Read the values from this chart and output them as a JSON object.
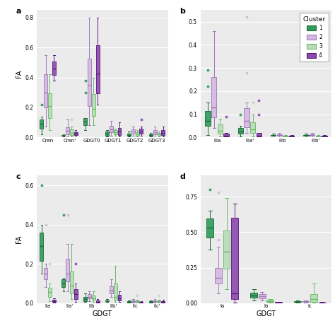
{
  "cluster_colors": {
    "1": "#2d9b5a",
    "2": "#d4b8e0",
    "3": "#b8ddb8",
    "4": "#8b4aad"
  },
  "cluster_edge_colors": {
    "1": "#1a6b35",
    "2": "#a07ab8",
    "3": "#6ab86a",
    "4": "#5a1880"
  },
  "cluster_median_colors": {
    "1": "#1a6b35",
    "2": "#a07ab8",
    "3": "#6ab86a",
    "4": "#5a1880"
  },
  "panel_a": {
    "title": "a",
    "ylabel": "FA",
    "ylim": [
      0,
      0.85
    ],
    "yticks": [
      0.0,
      0.2,
      0.4,
      0.6,
      0.8
    ],
    "categories": [
      "Cren",
      "Cren'",
      "GDGT0",
      "GDGT1",
      "GDGT2",
      "GDGT3"
    ],
    "xlabel": "",
    "clusters": {
      "1": {
        "Cren": [
          0.02,
          0.04,
          0.05,
          0.06,
          0.07,
          0.08,
          0.09,
          0.1,
          0.11,
          0.12,
          0.13,
          0.14,
          0.22
        ],
        "Cren'": [
          0.005,
          0.008,
          0.01,
          0.012,
          0.015,
          0.018,
          0.02
        ],
        "GDGT0": [
          0.05,
          0.07,
          0.08,
          0.09,
          0.1,
          0.11,
          0.12,
          0.13,
          0.38,
          0.3
        ],
        "GDGT1": [
          0.005,
          0.01,
          0.02,
          0.03,
          0.04,
          0.05
        ],
        "GDGT2": [
          0.005,
          0.01,
          0.015,
          0.02,
          0.03,
          0.04
        ],
        "GDGT3": [
          0.005,
          0.01,
          0.015,
          0.02,
          0.03
        ]
      },
      "2": {
        "Cren": [
          0.07,
          0.1,
          0.15,
          0.18,
          0.2,
          0.22,
          0.25,
          0.28,
          0.3,
          0.35,
          0.38,
          0.4,
          0.42,
          0.45,
          0.47,
          0.5,
          0.55
        ],
        "Cren'": [
          0.005,
          0.01,
          0.02,
          0.03,
          0.04,
          0.05,
          0.06,
          0.07,
          0.08,
          0.12
        ],
        "GDGT0": [
          0.08,
          0.12,
          0.15,
          0.18,
          0.2,
          0.22,
          0.25,
          0.27,
          0.3,
          0.35,
          0.38,
          0.4,
          0.45,
          0.5,
          0.55,
          0.6,
          0.62,
          0.65,
          0.8
        ],
        "GDGT1": [
          0.01,
          0.02,
          0.03,
          0.04,
          0.05,
          0.06,
          0.07,
          0.08,
          0.1,
          0.11
        ],
        "GDGT2": [
          0.01,
          0.02,
          0.03,
          0.04,
          0.05,
          0.06,
          0.07
        ],
        "GDGT3": [
          0.01,
          0.02,
          0.03,
          0.04,
          0.05,
          0.07
        ]
      },
      "3": {
        "Cren": [
          0.05,
          0.08,
          0.1,
          0.12,
          0.15,
          0.18,
          0.2,
          0.22,
          0.25,
          0.28,
          0.3,
          0.35,
          0.38,
          0.42
        ],
        "Cren'": [
          0.005,
          0.01,
          0.015,
          0.02,
          0.025,
          0.03,
          0.04,
          0.05,
          0.06,
          0.07,
          0.12
        ],
        "GDGT0": [
          0.08,
          0.1,
          0.12,
          0.14,
          0.15,
          0.16,
          0.18,
          0.2,
          0.22,
          0.25,
          0.3,
          0.35,
          0.38,
          0.4
        ],
        "GDGT1": [
          0.01,
          0.02,
          0.03,
          0.04,
          0.05,
          0.06
        ],
        "GDGT2": [
          0.005,
          0.01,
          0.015,
          0.02,
          0.03,
          0.04,
          0.05
        ],
        "GDGT3": [
          0.005,
          0.01,
          0.02,
          0.03,
          0.04
        ]
      },
      "4": {
        "Cren": [
          0.38,
          0.4,
          0.42,
          0.45,
          0.47,
          0.5,
          0.52,
          0.55
        ],
        "Cren'": [
          0.01,
          0.015,
          0.02,
          0.025,
          0.03,
          0.04,
          0.05
        ],
        "GDGT0": [
          0.22,
          0.25,
          0.27,
          0.3,
          0.32,
          0.35,
          0.5,
          0.55,
          0.6,
          0.65,
          0.75,
          0.8
        ],
        "GDGT1": [
          0.005,
          0.01,
          0.02,
          0.03,
          0.05,
          0.06,
          0.07,
          0.1
        ],
        "GDGT2": [
          0.01,
          0.02,
          0.03,
          0.04,
          0.05,
          0.07,
          0.12
        ],
        "GDGT3": [
          0.005,
          0.01,
          0.02,
          0.03,
          0.04,
          0.06,
          0.07
        ]
      }
    }
  },
  "panel_b": {
    "title": "b",
    "ylabel": "",
    "ylim": [
      0,
      0.55
    ],
    "yticks": [
      0.0,
      0.1,
      0.2,
      0.3,
      0.4,
      0.5
    ],
    "categories": [
      "IIIa",
      "IIIa'",
      "IIIb",
      "IIIb'"
    ],
    "xlabel": "",
    "clusters": {
      "1": {
        "IIIa": [
          0.01,
          0.02,
          0.03,
          0.04,
          0.05,
          0.055,
          0.06,
          0.065,
          0.07,
          0.075,
          0.08,
          0.09,
          0.1,
          0.12,
          0.14,
          0.15,
          0.22,
          0.29
        ],
        "IIIa'": [
          0.005,
          0.01,
          0.015,
          0.02,
          0.025,
          0.03,
          0.04,
          0.05,
          0.1
        ],
        "IIIb": [
          0.002,
          0.005,
          0.008,
          0.01,
          0.012,
          0.015
        ],
        "IIIb'": [
          0.002,
          0.005,
          0.008,
          0.01,
          0.012,
          0.015
        ]
      },
      "2": {
        "IIIa": [
          0.04,
          0.06,
          0.07,
          0.08,
          0.09,
          0.1,
          0.11,
          0.13,
          0.14,
          0.15,
          0.22,
          0.3,
          0.35,
          0.38,
          0.46
        ],
        "IIIa'": [
          0.02,
          0.03,
          0.04,
          0.05,
          0.06,
          0.07,
          0.08,
          0.1,
          0.15,
          0.28,
          0.52
        ],
        "IIIb": [
          0.002,
          0.005,
          0.008,
          0.01,
          0.015,
          0.02
        ],
        "IIIb'": [
          0.002,
          0.005,
          0.008,
          0.01,
          0.015,
          0.02
        ]
      },
      "3": {
        "IIIa": [
          0.005,
          0.01,
          0.015,
          0.02,
          0.025,
          0.03,
          0.04,
          0.05,
          0.06,
          0.07,
          0.08
        ],
        "IIIa'": [
          0.005,
          0.01,
          0.015,
          0.02,
          0.025,
          0.03,
          0.04,
          0.05,
          0.06,
          0.08,
          0.1,
          0.15
        ],
        "IIIb": [
          0.001,
          0.002,
          0.003,
          0.005,
          0.007,
          0.01
        ],
        "IIIb'": [
          0.001,
          0.002,
          0.003,
          0.005,
          0.007,
          0.01
        ]
      },
      "4": {
        "IIIa": [
          0.001,
          0.002,
          0.003,
          0.005,
          0.007,
          0.01,
          0.015,
          0.02,
          0.09
        ],
        "IIIa'": [
          0.001,
          0.002,
          0.003,
          0.005,
          0.007,
          0.01,
          0.015,
          0.02,
          0.1,
          0.16
        ],
        "IIIb": [
          0.001,
          0.002,
          0.003,
          0.005,
          0.007,
          0.01
        ],
        "IIIb'": [
          0.001,
          0.002,
          0.003,
          0.005,
          0.007,
          0.01
        ]
      }
    }
  },
  "panel_c": {
    "title": "c",
    "ylabel": "FA",
    "ylim": [
      0,
      0.65
    ],
    "yticks": [
      0.0,
      0.2,
      0.4,
      0.6
    ],
    "categories": [
      "IIa",
      "IIa'",
      "IIb",
      "IIb'",
      "IIc",
      "IIc'"
    ],
    "xlabel": "GDGT",
    "clusters": {
      "1": {
        "IIa": [
          0.15,
          0.18,
          0.2,
          0.22,
          0.25,
          0.28,
          0.3,
          0.32,
          0.35,
          0.38,
          0.4,
          0.6
        ],
        "IIa'": [
          0.06,
          0.07,
          0.08,
          0.09,
          0.1,
          0.11,
          0.12,
          0.13,
          0.45
        ],
        "IIb": [
          0.005,
          0.008,
          0.01,
          0.015,
          0.02,
          0.025,
          0.03,
          0.04,
          0.05
        ],
        "IIb'": [
          0.005,
          0.008,
          0.01,
          0.012,
          0.015,
          0.02
        ],
        "IIc": [
          0.001,
          0.003,
          0.005,
          0.007,
          0.01,
          0.012
        ],
        "IIc'": [
          0.001,
          0.003,
          0.005,
          0.007,
          0.01,
          0.012
        ]
      },
      "2": {
        "IIa": [
          0.08,
          0.1,
          0.12,
          0.14,
          0.15,
          0.17,
          0.18,
          0.2,
          0.4
        ],
        "IIa'": [
          0.06,
          0.08,
          0.1,
          0.12,
          0.14,
          0.15,
          0.18,
          0.2,
          0.25,
          0.3,
          0.45
        ],
        "IIb": [
          0.01,
          0.02,
          0.025,
          0.03,
          0.04,
          0.05,
          0.06
        ],
        "IIb'": [
          0.03,
          0.04,
          0.05,
          0.06,
          0.07,
          0.08,
          0.1,
          0.12
        ],
        "IIc": [
          0.003,
          0.005,
          0.007,
          0.01,
          0.012,
          0.015,
          0.02
        ],
        "IIc'": [
          0.003,
          0.005,
          0.007,
          0.01,
          0.012,
          0.015,
          0.02
        ]
      },
      "3": {
        "IIa": [
          0.01,
          0.02,
          0.03,
          0.04,
          0.05,
          0.06,
          0.07,
          0.08,
          0.1,
          0.2
        ],
        "IIa'": [
          0.02,
          0.03,
          0.04,
          0.05,
          0.06,
          0.08,
          0.1,
          0.12,
          0.15,
          0.2,
          0.25,
          0.3
        ],
        "IIb": [
          0.005,
          0.01,
          0.015,
          0.02,
          0.025,
          0.03,
          0.04,
          0.05,
          0.06
        ],
        "IIb'": [
          0.005,
          0.01,
          0.015,
          0.02,
          0.03,
          0.05,
          0.1,
          0.16,
          0.19
        ],
        "IIc": [
          0.002,
          0.004,
          0.006,
          0.008,
          0.01,
          0.015,
          0.04
        ],
        "IIc'": [
          0.002,
          0.004,
          0.006,
          0.008,
          0.01,
          0.015,
          0.04
        ]
      },
      "4": {
        "IIa": [
          0.001,
          0.003,
          0.005,
          0.007,
          0.01,
          0.015,
          0.02,
          0.025
        ],
        "IIa'": [
          0.005,
          0.01,
          0.015,
          0.02,
          0.03,
          0.04,
          0.05,
          0.06,
          0.07,
          0.08,
          0.1,
          0.2
        ],
        "IIb": [
          0.001,
          0.003,
          0.005,
          0.007,
          0.01,
          0.015,
          0.02
        ],
        "IIb'": [
          0.005,
          0.01,
          0.015,
          0.02,
          0.03,
          0.04,
          0.05,
          0.06
        ],
        "IIc": [
          0.001,
          0.002,
          0.003,
          0.005,
          0.007,
          0.01
        ],
        "IIc'": [
          0.001,
          0.002,
          0.003,
          0.005,
          0.007,
          0.01,
          0.015
        ]
      }
    }
  },
  "panel_d": {
    "title": "d",
    "ylabel": "",
    "ylim": [
      0,
      0.9
    ],
    "yticks": [
      0.0,
      0.25,
      0.5,
      0.75
    ],
    "categories": [
      "Ia",
      "Ib",
      "Ic"
    ],
    "xlabel": "GDGT",
    "clusters": {
      "1": {
        "Ia": [
          0.38,
          0.42,
          0.44,
          0.46,
          0.48,
          0.5,
          0.52,
          0.54,
          0.56,
          0.58,
          0.6,
          0.62,
          0.65,
          0.8
        ],
        "Ib": [
          0.02,
          0.03,
          0.04,
          0.05,
          0.06,
          0.07,
          0.08,
          0.1
        ],
        "Ic": [
          0.002,
          0.005,
          0.007,
          0.01,
          0.012,
          0.015,
          0.02
        ]
      },
      "2": {
        "Ia": [
          0.07,
          0.1,
          0.12,
          0.14,
          0.15,
          0.17,
          0.18,
          0.2,
          0.22,
          0.25,
          0.4,
          0.45,
          0.78
        ],
        "Ib": [
          0.02,
          0.03,
          0.04,
          0.05,
          0.06,
          0.07,
          0.08
        ],
        "Ic": [
          0.005,
          0.008,
          0.01,
          0.012,
          0.015,
          0.02
        ]
      },
      "3": {
        "Ia": [
          0.1,
          0.15,
          0.18,
          0.2,
          0.22,
          0.25,
          0.28,
          0.3,
          0.32,
          0.35,
          0.38,
          0.4,
          0.42,
          0.45,
          0.5,
          0.55,
          0.6,
          0.65,
          0.7,
          0.74
        ],
        "Ib": [
          0.005,
          0.008,
          0.01,
          0.012,
          0.015,
          0.02,
          0.025,
          0.03
        ],
        "Ic": [
          0.003,
          0.005,
          0.008,
          0.01,
          0.015,
          0.02,
          0.04,
          0.05,
          0.06,
          0.08,
          0.1,
          0.14
        ]
      },
      "4": {
        "Ia": [
          0.002,
          0.005,
          0.01,
          0.02,
          0.03,
          0.04,
          0.05,
          0.06,
          0.07,
          0.08,
          0.1,
          0.55,
          0.6,
          0.62,
          0.65,
          0.67,
          0.7
        ],
        "Ib": [
          0.001,
          0.002,
          0.003,
          0.005,
          0.007,
          0.01
        ],
        "Ic": [
          0.001,
          0.002,
          0.003,
          0.005,
          0.007
        ]
      }
    }
  }
}
